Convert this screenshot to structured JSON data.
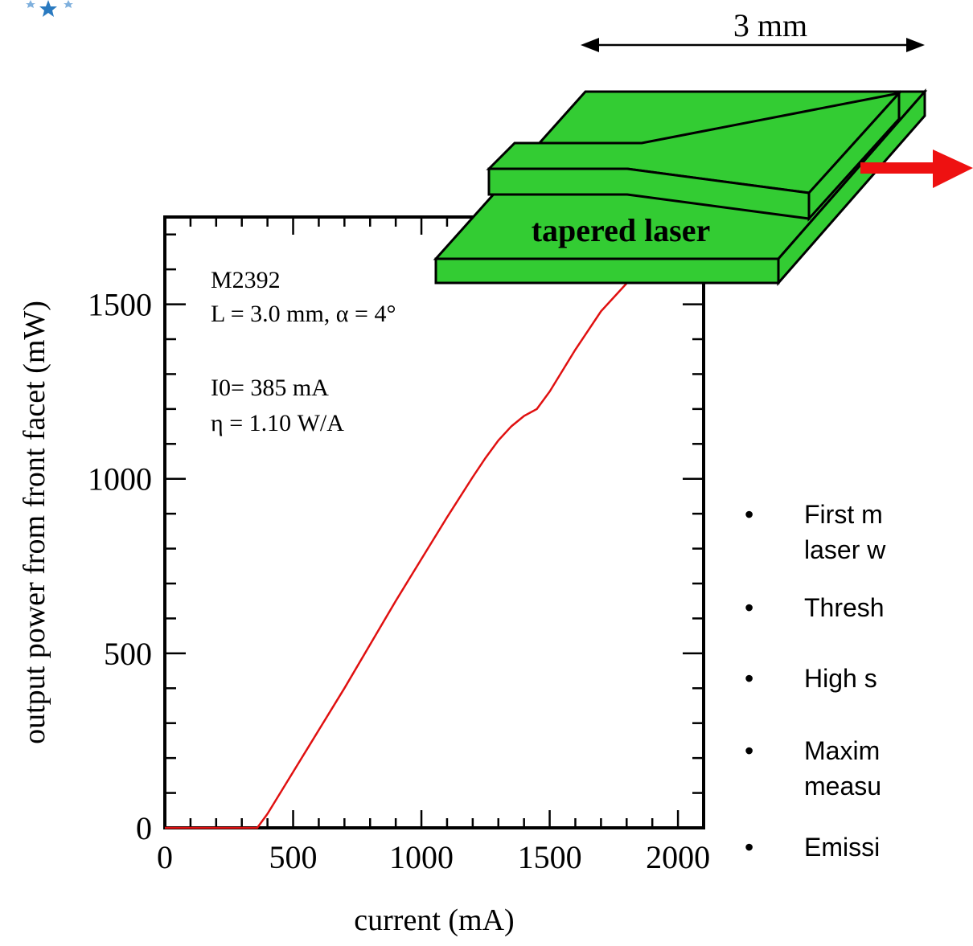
{
  "logo": {
    "icon": "star-logo-icon",
    "color": "#2a7ac0"
  },
  "diagram": {
    "length_label": "3 mm",
    "device_label": "tapered laser",
    "device_color": "#33cc33",
    "output_arrow_color": "#ee1111"
  },
  "chart_data": {
    "type": "line",
    "xlabel": "current (mA)",
    "ylabel": "output power from front facet (mW)",
    "xlim": [
      0,
      2100
    ],
    "ylim": [
      0,
      1750
    ],
    "xticks": [
      0,
      500,
      1000,
      1500,
      2000
    ],
    "yticks": [
      0,
      500,
      1000,
      1500
    ],
    "grid": false,
    "annotations": [
      "M2392",
      "L = 3.0 mm,  α =  4°",
      "I0= 385 mA",
      "η = 1.10 W/A"
    ],
    "series": [
      {
        "color": "#e01010",
        "x": [
          0,
          360,
          400,
          500,
          600,
          700,
          800,
          900,
          1000,
          1100,
          1200,
          1250,
          1300,
          1350,
          1400,
          1450,
          1500,
          1600,
          1700,
          1800,
          1900,
          2000,
          2030
        ],
        "y": [
          0,
          0,
          40,
          160,
          280,
          400,
          525,
          650,
          770,
          890,
          1005,
          1060,
          1110,
          1150,
          1180,
          1200,
          1250,
          1370,
          1480,
          1560,
          1610,
          1660,
          1675
        ]
      }
    ]
  },
  "bullets": [
    {
      "text": "First m",
      "text2": "laser w"
    },
    {
      "text": "Thresh"
    },
    {
      "text": "High s"
    },
    {
      "text": "Maxim",
      "text2": "measu"
    },
    {
      "text": "Emissi"
    }
  ]
}
